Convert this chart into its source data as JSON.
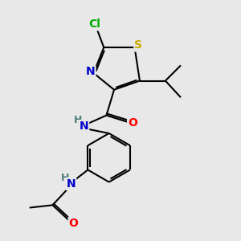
{
  "background_color": "#e8e8e8",
  "atom_colors": {
    "C": "#000000",
    "N": "#0000cc",
    "O": "#ff0000",
    "S": "#ccaa00",
    "Cl": "#00aa00",
    "H": "#4d7f7f"
  },
  "bond_color": "#000000",
  "bond_width": 1.5,
  "font_size_atoms": 10,
  "font_size_H": 9
}
